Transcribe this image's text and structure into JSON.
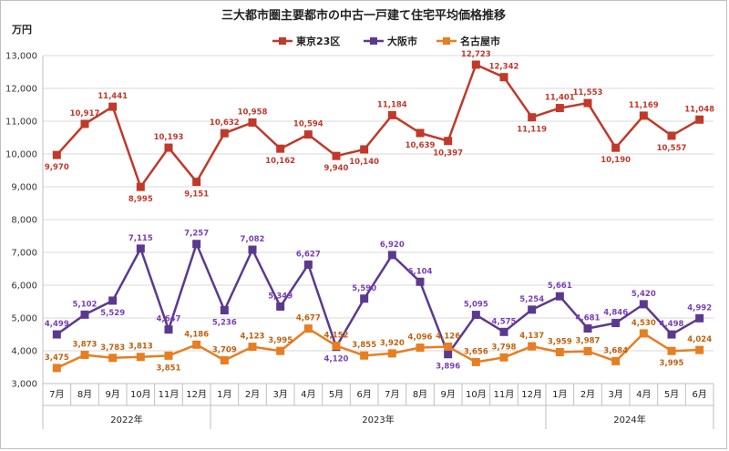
{
  "chart_data": {
    "type": "line",
    "title": "三大都市圏主要都市の中古一戸建て住宅平均価格推移",
    "unit": "万円",
    "ylim": [
      3000,
      13000
    ],
    "yticks": [
      "3,000",
      "4,000",
      "5,000",
      "6,000",
      "7,000",
      "8,000",
      "9,000",
      "10,000",
      "11,000",
      "12,000",
      "13,000"
    ],
    "categories": [
      "7月",
      "8月",
      "9月",
      "10月",
      "11月",
      "12月",
      "1月",
      "2月",
      "3月",
      "4月",
      "5月",
      "6月",
      "7月",
      "8月",
      "9月",
      "10月",
      "11月",
      "12月",
      "1月",
      "2月",
      "3月",
      "4月",
      "5月",
      "6月"
    ],
    "years": [
      {
        "label": "2022年",
        "start": 0,
        "end": 5
      },
      {
        "label": "2023年",
        "start": 6,
        "end": 17
      },
      {
        "label": "2024年",
        "start": 18,
        "end": 23
      }
    ],
    "grid": true,
    "legend": "top",
    "series": [
      {
        "name": "東京23区",
        "color": "#C0392B",
        "label_color": "#C0392B",
        "marker": "square",
        "values": [
          9970,
          10917,
          11441,
          8995,
          10193,
          9151,
          10632,
          10958,
          10162,
          10594,
          9940,
          10140,
          11184,
          10639,
          10397,
          12723,
          12342,
          11119,
          11401,
          11553,
          10190,
          11169,
          10557,
          11048
        ],
        "labels": [
          "9,970",
          "10,917",
          "11,441",
          "8,995",
          "10,193",
          "9,151",
          "10,632",
          "10,958",
          "10,162",
          "10,594",
          "9,940",
          "10,140",
          "11,184",
          "10,639",
          "10,397",
          "12,723",
          "12,342",
          "11,119",
          "11,401",
          "11,553",
          "10,190",
          "11,169",
          "10,557",
          "11,048"
        ],
        "label_pos": [
          "below",
          "above",
          "above",
          "below",
          "above",
          "below",
          "above",
          "above",
          "below",
          "above",
          "below",
          "below",
          "above",
          "below",
          "below",
          "above",
          "above",
          "below",
          "above",
          "above",
          "below",
          "above",
          "below",
          "above"
        ]
      },
      {
        "name": "大阪市",
        "color": "#5B3A8E",
        "label_color": "#7B3FB5",
        "marker": "square",
        "values": [
          4499,
          5102,
          5529,
          7115,
          4647,
          7257,
          5236,
          7082,
          5349,
          6627,
          4120,
          5590,
          6920,
          6104,
          3896,
          5095,
          4575,
          5254,
          5661,
          4681,
          4846,
          5420,
          4498,
          4992
        ],
        "labels": [
          "4,499",
          "5,102",
          "5,529",
          "7,115",
          "4,647",
          "7,257",
          "5,236",
          "7,082",
          "5,349",
          "6,627",
          "4,120",
          "5,590",
          "6,920",
          "6,104",
          "3,896",
          "5,095",
          "4,575",
          "5,254",
          "5,661",
          "4,681",
          "4,846",
          "5,420",
          "4,498",
          "4,992"
        ],
        "label_pos": [
          "above",
          "above",
          "below",
          "above",
          "above",
          "above",
          "below",
          "above",
          "above",
          "above",
          "below",
          "above",
          "above",
          "above",
          "below",
          "above",
          "above",
          "above",
          "above",
          "above",
          "above",
          "above",
          "above",
          "above"
        ]
      },
      {
        "name": "名古屋市",
        "color": "#E67E22",
        "label_color": "#C0620F",
        "marker": "square",
        "values": [
          3475,
          3873,
          3783,
          3813,
          3851,
          4186,
          3709,
          4123,
          3995,
          4677,
          4152,
          3855,
          3920,
          4096,
          4126,
          3656,
          3798,
          4137,
          3959,
          3987,
          3684,
          4530,
          3995,
          4024
        ],
        "labels": [
          "3,475",
          "3,873",
          "3,783",
          "3,813",
          "3,851",
          "4,186",
          "3,709",
          "4,123",
          "3,995",
          "4,677",
          "4,152",
          "3,855",
          "3,920",
          "4,096",
          "4,126",
          "3,656",
          "3,798",
          "4,137",
          "3,959",
          "3,987",
          "3,684",
          "4,530",
          "3,995",
          "4,024"
        ],
        "label_pos": [
          "above",
          "above",
          "above",
          "above",
          "below",
          "above",
          "above",
          "above",
          "above",
          "above",
          "above",
          "above",
          "above",
          "above",
          "above",
          "above",
          "above",
          "above",
          "above",
          "above",
          "above",
          "above",
          "below",
          "above"
        ]
      }
    ]
  }
}
